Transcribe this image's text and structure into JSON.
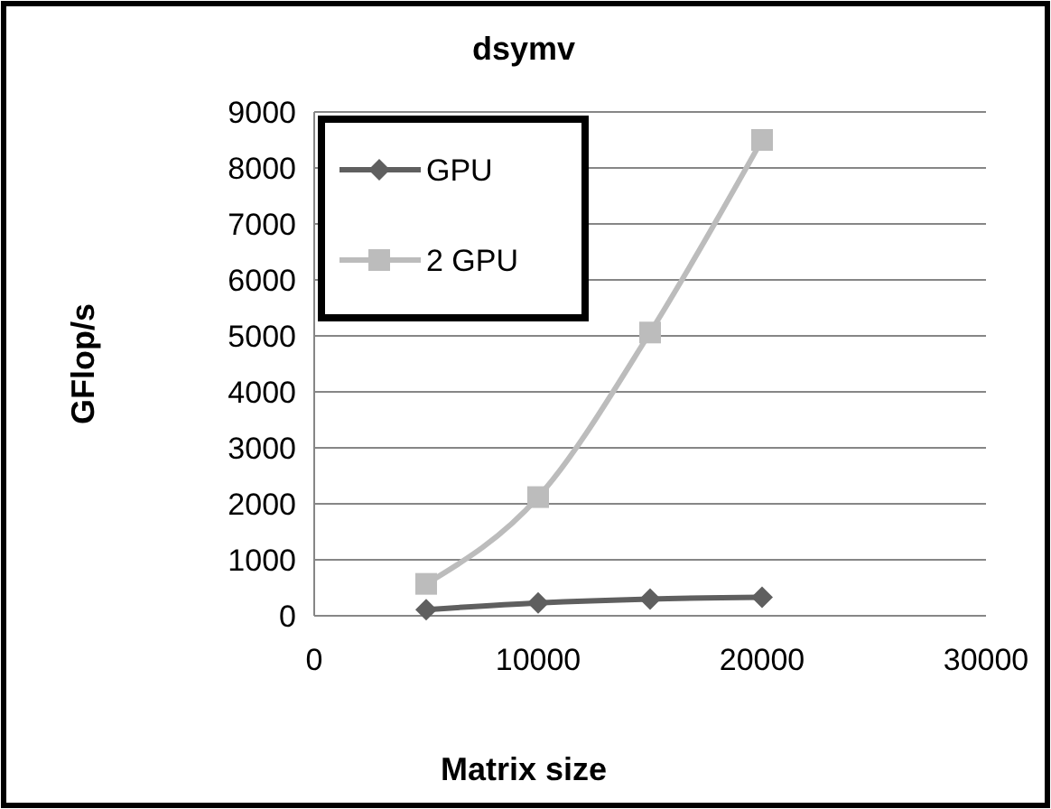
{
  "chart_data": {
    "type": "line",
    "title": "dsymv",
    "xlabel": "Matrix size",
    "ylabel": "GFlop/s",
    "x": [
      5000,
      10000,
      15000,
      20000
    ],
    "series": [
      {
        "name": "GPU",
        "color": "#5f5f5f",
        "marker": "diamond",
        "values": [
          110,
          230,
          300,
          330
        ]
      },
      {
        "name": "2 GPU",
        "color": "#bcbcbc",
        "marker": "square",
        "values": [
          570,
          2120,
          5060,
          8500
        ]
      }
    ],
    "xlim": [
      0,
      30000
    ],
    "xticks": [
      0,
      10000,
      20000,
      30000
    ],
    "ylim": [
      0,
      9000
    ],
    "yticks": [
      0,
      1000,
      2000,
      3000,
      4000,
      5000,
      6000,
      7000,
      8000,
      9000
    ],
    "grid": "y",
    "legend": "top left",
    "line_style": "solid"
  }
}
